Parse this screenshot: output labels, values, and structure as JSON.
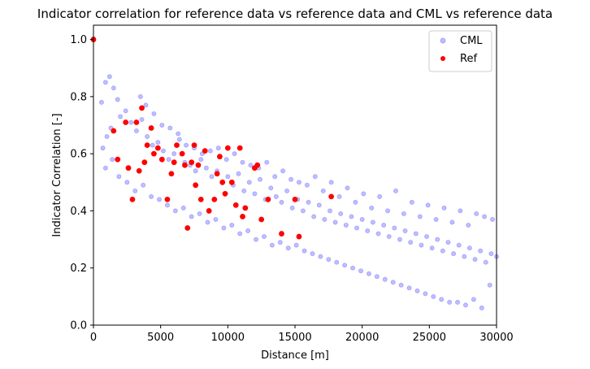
{
  "chart_data": {
    "type": "scatter",
    "title": "Indicator correlation for reference data vs reference data and CML vs reference data",
    "xlabel": "Distance [m]",
    "ylabel": "Indicator Correlation [-]",
    "xlim": [
      0,
      30000
    ],
    "ylim": [
      0,
      1.05
    ],
    "xticks": [
      0,
      5000,
      10000,
      15000,
      20000,
      25000,
      30000
    ],
    "xtick_labels": [
      "0",
      "5000",
      "10000",
      "15000",
      "20000",
      "25000",
      "30000"
    ],
    "yticks": [
      0,
      0.2,
      0.4,
      0.6,
      0.8,
      1.0
    ],
    "ytick_labels": [
      "0.0",
      "0.2",
      "0.4",
      "0.6",
      "0.8",
      "1.0"
    ],
    "grid": false,
    "legend": {
      "placement": "top-right",
      "entries": [
        "CML",
        "Ref"
      ]
    },
    "series": [
      {
        "name": "CML",
        "color": "#0000ff",
        "alpha": 0.25,
        "marker": "circle",
        "points": [
          [
            600,
            0.78
          ],
          [
            900,
            0.85
          ],
          [
            1200,
            0.87
          ],
          [
            1500,
            0.83
          ],
          [
            1800,
            0.79
          ],
          [
            700,
            0.62
          ],
          [
            1000,
            0.66
          ],
          [
            1300,
            0.69
          ],
          [
            2000,
            0.73
          ],
          [
            2400,
            0.75
          ],
          [
            2800,
            0.71
          ],
          [
            3200,
            0.68
          ],
          [
            3600,
            0.72
          ],
          [
            4000,
            0.66
          ],
          [
            4400,
            0.63
          ],
          [
            4800,
            0.64
          ],
          [
            5200,
            0.61
          ],
          [
            5600,
            0.58
          ],
          [
            6000,
            0.6
          ],
          [
            6400,
            0.65
          ],
          [
            6800,
            0.57
          ],
          [
            7200,
            0.56
          ],
          [
            7600,
            0.54
          ],
          [
            8000,
            0.58
          ],
          [
            8400,
            0.55
          ],
          [
            8800,
            0.52
          ],
          [
            9200,
            0.54
          ],
          [
            9600,
            0.5
          ],
          [
            10000,
            0.52
          ],
          [
            10400,
            0.49
          ],
          [
            10800,
            0.53
          ],
          [
            11200,
            0.47
          ],
          [
            11600,
            0.5
          ],
          [
            12000,
            0.46
          ],
          [
            12400,
            0.51
          ],
          [
            12800,
            0.44
          ],
          [
            13200,
            0.48
          ],
          [
            13600,
            0.45
          ],
          [
            14000,
            0.43
          ],
          [
            14400,
            0.47
          ],
          [
            14800,
            0.41
          ],
          [
            15200,
            0.44
          ],
          [
            15600,
            0.4
          ],
          [
            16000,
            0.43
          ],
          [
            16400,
            0.38
          ],
          [
            16800,
            0.42
          ],
          [
            17200,
            0.37
          ],
          [
            17600,
            0.4
          ],
          [
            18000,
            0.36
          ],
          [
            18400,
            0.39
          ],
          [
            18800,
            0.35
          ],
          [
            19200,
            0.38
          ],
          [
            19600,
            0.34
          ],
          [
            20000,
            0.37
          ],
          [
            20400,
            0.33
          ],
          [
            20800,
            0.36
          ],
          [
            21200,
            0.32
          ],
          [
            21600,
            0.35
          ],
          [
            22000,
            0.31
          ],
          [
            22400,
            0.34
          ],
          [
            22800,
            0.3
          ],
          [
            23200,
            0.33
          ],
          [
            23600,
            0.29
          ],
          [
            24000,
            0.32
          ],
          [
            24400,
            0.28
          ],
          [
            24800,
            0.31
          ],
          [
            25200,
            0.27
          ],
          [
            25600,
            0.3
          ],
          [
            26000,
            0.26
          ],
          [
            26400,
            0.29
          ],
          [
            26800,
            0.25
          ],
          [
            27200,
            0.28
          ],
          [
            27600,
            0.24
          ],
          [
            28000,
            0.27
          ],
          [
            28400,
            0.23
          ],
          [
            28800,
            0.26
          ],
          [
            29200,
            0.22
          ],
          [
            29600,
            0.25
          ],
          [
            30000,
            0.24
          ],
          [
            900,
            0.55
          ],
          [
            1400,
            0.58
          ],
          [
            1900,
            0.52
          ],
          [
            2500,
            0.5
          ],
          [
            3100,
            0.47
          ],
          [
            3700,
            0.49
          ],
          [
            4300,
            0.45
          ],
          [
            4900,
            0.44
          ],
          [
            5500,
            0.42
          ],
          [
            6100,
            0.4
          ],
          [
            6700,
            0.41
          ],
          [
            7300,
            0.38
          ],
          [
            7900,
            0.39
          ],
          [
            8500,
            0.36
          ],
          [
            9100,
            0.37
          ],
          [
            9700,
            0.34
          ],
          [
            10300,
            0.35
          ],
          [
            10900,
            0.32
          ],
          [
            11500,
            0.33
          ],
          [
            12100,
            0.3
          ],
          [
            12700,
            0.31
          ],
          [
            13300,
            0.28
          ],
          [
            13900,
            0.29
          ],
          [
            14500,
            0.27
          ],
          [
            15100,
            0.28
          ],
          [
            15700,
            0.26
          ],
          [
            16300,
            0.25
          ],
          [
            16900,
            0.24
          ],
          [
            17500,
            0.23
          ],
          [
            18100,
            0.22
          ],
          [
            18700,
            0.21
          ],
          [
            19300,
            0.2
          ],
          [
            19900,
            0.19
          ],
          [
            20500,
            0.18
          ],
          [
            21100,
            0.17
          ],
          [
            21700,
            0.16
          ],
          [
            22300,
            0.15
          ],
          [
            22900,
            0.14
          ],
          [
            23500,
            0.13
          ],
          [
            24100,
            0.12
          ],
          [
            24700,
            0.11
          ],
          [
            25300,
            0.1
          ],
          [
            25900,
            0.09
          ],
          [
            26500,
            0.08
          ],
          [
            27100,
            0.08
          ],
          [
            27700,
            0.07
          ],
          [
            28300,
            0.09
          ],
          [
            28900,
            0.06
          ],
          [
            29500,
            0.14
          ],
          [
            3500,
            0.8
          ],
          [
            3900,
            0.77
          ],
          [
            4500,
            0.74
          ],
          [
            5100,
            0.7
          ],
          [
            5700,
            0.69
          ],
          [
            6300,
            0.67
          ],
          [
            6900,
            0.63
          ],
          [
            7500,
            0.62
          ],
          [
            8100,
            0.6
          ],
          [
            8700,
            0.61
          ],
          [
            9300,
            0.62
          ],
          [
            9900,
            0.58
          ],
          [
            10500,
            0.6
          ],
          [
            11100,
            0.57
          ],
          [
            11700,
            0.56
          ],
          [
            12300,
            0.55
          ],
          [
            12900,
            0.57
          ],
          [
            13500,
            0.52
          ],
          [
            14100,
            0.54
          ],
          [
            14700,
            0.51
          ],
          [
            15300,
            0.5
          ],
          [
            15900,
            0.49
          ],
          [
            16500,
            0.52
          ],
          [
            17100,
            0.47
          ],
          [
            17700,
            0.5
          ],
          [
            18300,
            0.45
          ],
          [
            18900,
            0.48
          ],
          [
            19500,
            0.43
          ],
          [
            20100,
            0.46
          ],
          [
            20700,
            0.41
          ],
          [
            21300,
            0.45
          ],
          [
            21900,
            0.4
          ],
          [
            22500,
            0.47
          ],
          [
            23100,
            0.39
          ],
          [
            23700,
            0.43
          ],
          [
            24300,
            0.38
          ],
          [
            24900,
            0.42
          ],
          [
            25500,
            0.37
          ],
          [
            26100,
            0.41
          ],
          [
            26700,
            0.36
          ],
          [
            27300,
            0.4
          ],
          [
            27900,
            0.35
          ],
          [
            28500,
            0.39
          ],
          [
            29100,
            0.38
          ],
          [
            29700,
            0.37
          ]
        ]
      },
      {
        "name": "Ref",
        "color": "#ff0000",
        "alpha": 1.0,
        "marker": "circle",
        "points": [
          [
            0,
            1.0
          ],
          [
            1500,
            0.68
          ],
          [
            1800,
            0.58
          ],
          [
            2400,
            0.71
          ],
          [
            2600,
            0.55
          ],
          [
            2900,
            0.44
          ],
          [
            3200,
            0.71
          ],
          [
            3400,
            0.54
          ],
          [
            3600,
            0.76
          ],
          [
            3800,
            0.57
          ],
          [
            4000,
            0.63
          ],
          [
            4300,
            0.69
          ],
          [
            4500,
            0.6
          ],
          [
            4800,
            0.62
          ],
          [
            5100,
            0.58
          ],
          [
            5500,
            0.44
          ],
          [
            5800,
            0.53
          ],
          [
            6000,
            0.57
          ],
          [
            6200,
            0.63
          ],
          [
            6600,
            0.6
          ],
          [
            6800,
            0.56
          ],
          [
            7000,
            0.34
          ],
          [
            7300,
            0.57
          ],
          [
            7500,
            0.63
          ],
          [
            7600,
            0.49
          ],
          [
            7800,
            0.56
          ],
          [
            8000,
            0.44
          ],
          [
            8300,
            0.61
          ],
          [
            8600,
            0.4
          ],
          [
            9000,
            0.44
          ],
          [
            9200,
            0.53
          ],
          [
            9400,
            0.59
          ],
          [
            9600,
            0.5
          ],
          [
            9800,
            0.46
          ],
          [
            10000,
            0.62
          ],
          [
            10300,
            0.5
          ],
          [
            10600,
            0.42
          ],
          [
            10900,
            0.62
          ],
          [
            11100,
            0.38
          ],
          [
            11300,
            0.41
          ],
          [
            12000,
            0.55
          ],
          [
            12200,
            0.56
          ],
          [
            12500,
            0.37
          ],
          [
            13000,
            0.44
          ],
          [
            14000,
            0.32
          ],
          [
            15000,
            0.44
          ],
          [
            15300,
            0.31
          ],
          [
            17700,
            0.45
          ]
        ]
      }
    ]
  }
}
